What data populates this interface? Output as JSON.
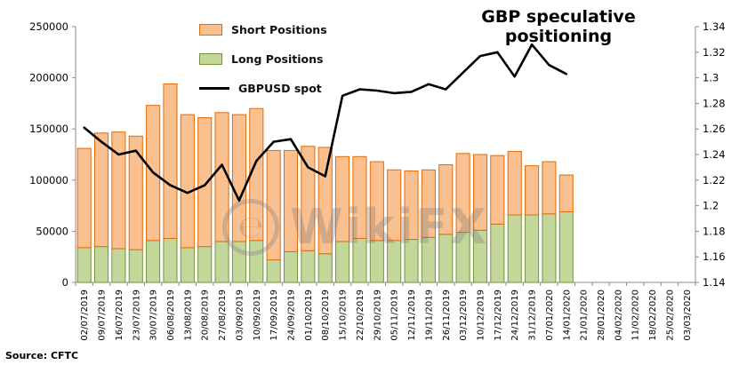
{
  "title": "GBP speculative positioning",
  "source": "Source: CFTC",
  "watermark": {
    "logo_glyph": "℮",
    "text": "WikiFX"
  },
  "legend": [
    {
      "label": "Short Positions",
      "color": "#FAC090",
      "border": "#E26B0A",
      "kind": "box"
    },
    {
      "label": "Long Positions",
      "color": "#C4D79B",
      "border": "#76933C",
      "kind": "box"
    },
    {
      "label": "GBPUSD spot",
      "color": "#000000",
      "border": "#000000",
      "kind": "line"
    }
  ],
  "chart_data": {
    "type": "combo: stacked-bar + line",
    "title": "GBP speculative positioning",
    "categories": [
      "02/07/2019",
      "09/07/2019",
      "16/07/2019",
      "23/07/2019",
      "30/07/2019",
      "06/08/2019",
      "13/08/2019",
      "20/08/2019",
      "27/08/2019",
      "03/09/2019",
      "10/09/2019",
      "17/09/2019",
      "24/09/2019",
      "01/10/2019",
      "08/10/2019",
      "15/10/2019",
      "22/10/2019",
      "29/10/2019",
      "05/11/2019",
      "12/11/2019",
      "19/11/2019",
      "26/11/2019",
      "03/12/2019",
      "10/12/2019",
      "17/12/2019",
      "24/12/2019",
      "31/12/2019",
      "07/01/2020",
      "14/01/2020",
      "21/01/2020",
      "28/01/2020",
      "04/02/2020",
      "11/02/2020",
      "18/02/2020",
      "25/02/2020",
      "03/03/2020"
    ],
    "series": [
      {
        "name": "Long Positions",
        "type": "bar",
        "stack": "positions",
        "axis": "left",
        "color": "#C4D79B",
        "border": "#76933C",
        "values": [
          34000,
          35000,
          33000,
          32000,
          41000,
          43000,
          34000,
          35000,
          40000,
          40000,
          41000,
          22000,
          30000,
          31000,
          28000,
          40000,
          43000,
          41000,
          41000,
          42000,
          44000,
          47000,
          49000,
          51000,
          57000,
          66000,
          66000,
          67000,
          69000,
          null,
          null,
          null,
          null,
          null,
          null,
          null
        ]
      },
      {
        "name": "Short Positions",
        "type": "bar",
        "stack": "positions",
        "axis": "left",
        "color": "#FAC090",
        "border": "#E26B0A",
        "values": [
          97000,
          111000,
          114000,
          111000,
          132000,
          151000,
          130000,
          126000,
          126000,
          124000,
          129000,
          107000,
          99000,
          102000,
          104000,
          83000,
          80000,
          77000,
          69000,
          67000,
          66000,
          68000,
          77000,
          74000,
          67000,
          62000,
          48000,
          51000,
          36000,
          null,
          null,
          null,
          null,
          null,
          null,
          null
        ]
      },
      {
        "name": "GBPUSD spot",
        "type": "line",
        "axis": "right",
        "color": "#000000",
        "values": [
          1.261,
          1.25,
          1.24,
          1.243,
          1.226,
          1.216,
          1.21,
          1.216,
          1.232,
          1.204,
          1.235,
          1.25,
          1.252,
          1.23,
          1.223,
          1.286,
          1.291,
          1.29,
          1.288,
          1.289,
          1.295,
          1.291,
          1.304,
          1.317,
          1.32,
          1.301,
          1.326,
          1.31,
          1.303,
          null,
          null,
          null,
          null,
          null,
          null,
          null
        ]
      }
    ],
    "left_axis": {
      "min": 0,
      "max": 250000,
      "step": 50000,
      "ticks": [
        0,
        50000,
        100000,
        150000,
        200000,
        250000
      ],
      "labels": [
        "0",
        "50000",
        "100000",
        "150000",
        "200000",
        "250000"
      ]
    },
    "right_axis": {
      "min": 1.14,
      "max": 1.34,
      "step": 0.02,
      "ticks": [
        1.14,
        1.16,
        1.18,
        1.2,
        1.22,
        1.24,
        1.26,
        1.28,
        1.3,
        1.32,
        1.34
      ],
      "labels": [
        "1.14",
        "1.16",
        "1.18",
        "1.2",
        "1.22",
        "1.24",
        "1.26",
        "1.28",
        "1.3",
        "1.32",
        "1.34"
      ]
    },
    "grid": false,
    "legend_position": "top-left-inside",
    "axis_color": "#8c8c8c"
  }
}
